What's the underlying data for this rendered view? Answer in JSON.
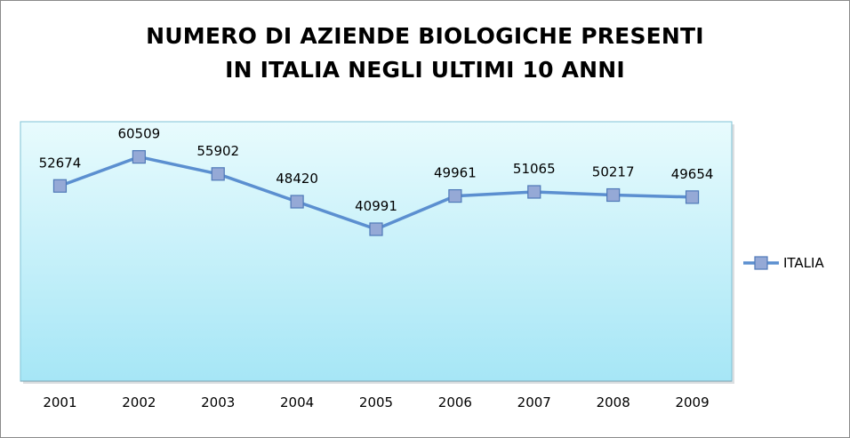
{
  "chart_data": {
    "type": "line",
    "title_lines": [
      "NUMERO DI AZIENDE BIOLOGICHE PRESENTI",
      "IN ITALIA NEGLI ULTIMI 10 ANNI"
    ],
    "categories": [
      "2001",
      "2002",
      "2003",
      "2004",
      "2005",
      "2006",
      "2007",
      "2008",
      "2009"
    ],
    "series": [
      {
        "name": "ITALIA",
        "values": [
          52674,
          60509,
          55902,
          48420,
          40991,
          49961,
          51065,
          50217,
          49654
        ],
        "color": "#5b8fd0",
        "marker_color": "#95a9d6"
      }
    ],
    "ylim": [
      0,
      70000
    ],
    "grid": false,
    "data_labels": true,
    "legend_position": "right",
    "plot_background": [
      "#e8fbfd",
      "#a6e6f6"
    ]
  }
}
